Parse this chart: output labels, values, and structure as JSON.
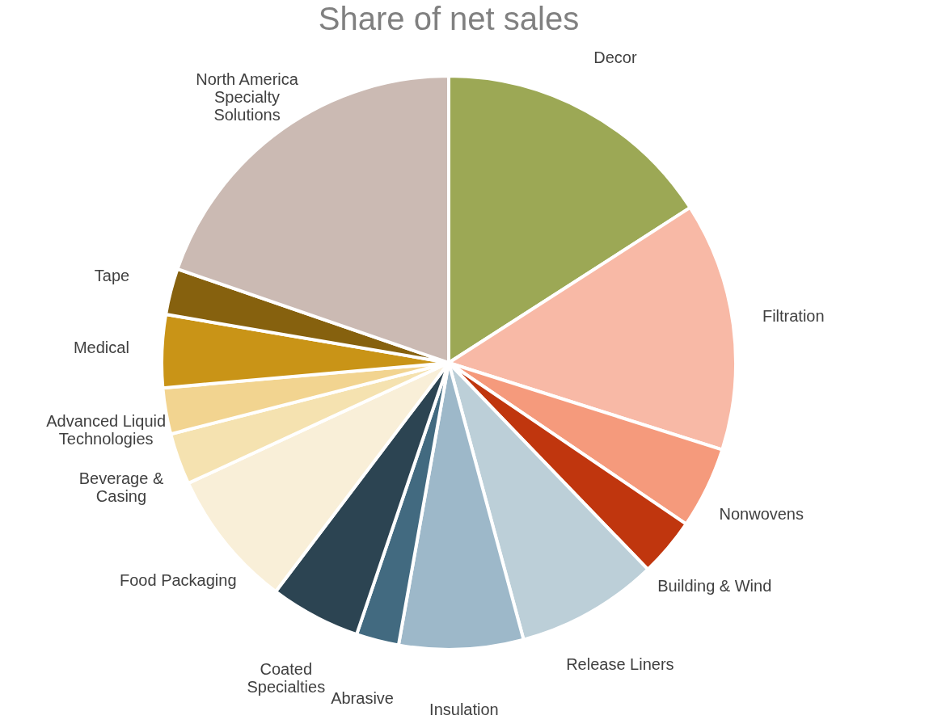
{
  "chart_data": {
    "type": "pie",
    "title": "Share of net sales",
    "categories": [
      "Decor",
      "Filtration",
      "Nonwovens",
      "Building & Wind",
      "Release Liners",
      "Insulation",
      "Abrasive",
      "Coated Specialties",
      "Food Packaging",
      "Beverage & Casing",
      "Advanced Liquid Technologies",
      "Medical",
      "Tape",
      "North America Specialty Solutions"
    ],
    "values": [
      15.9,
      14.0,
      4.6,
      3.3,
      8.0,
      7.0,
      2.4,
      5.1,
      7.8,
      2.9,
      2.6,
      4.1,
      2.6,
      19.7
    ],
    "colors": [
      "#9ca855",
      "#f8b9a6",
      "#f59a7c",
      "#c0360e",
      "#bccfd8",
      "#9db8c9",
      "#426a80",
      "#2c4452",
      "#f9efd8",
      "#f5e2b0",
      "#f2d490",
      "#c99417",
      "#86610e",
      "#cbbab3"
    ]
  }
}
